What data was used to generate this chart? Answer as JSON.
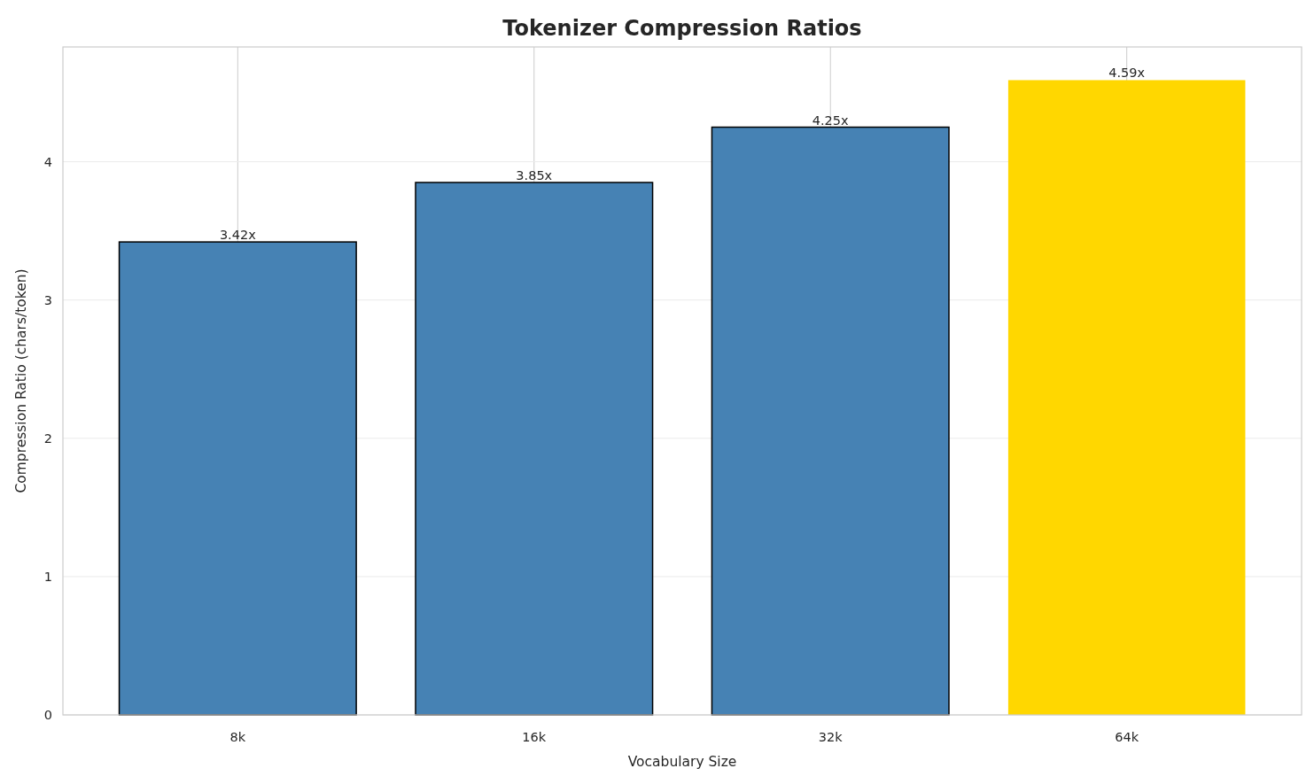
{
  "chart_data": {
    "type": "bar",
    "title": "Tokenizer Compression Ratios",
    "xlabel": "Vocabulary Size",
    "ylabel": "Compression Ratio (chars/token)",
    "categories": [
      "8k",
      "16k",
      "32k",
      "64k"
    ],
    "values": [
      3.42,
      3.85,
      4.25,
      4.59
    ],
    "colors": [
      "#4682b4",
      "#4682b4",
      "#4682b4",
      "#ffd700"
    ],
    "value_labels": [
      "3.42x",
      "3.85x",
      "4.25x",
      "4.59x"
    ],
    "ylim": [
      0,
      4.83
    ],
    "yticks": [
      0,
      1,
      2,
      3,
      4
    ],
    "grid": true
  }
}
